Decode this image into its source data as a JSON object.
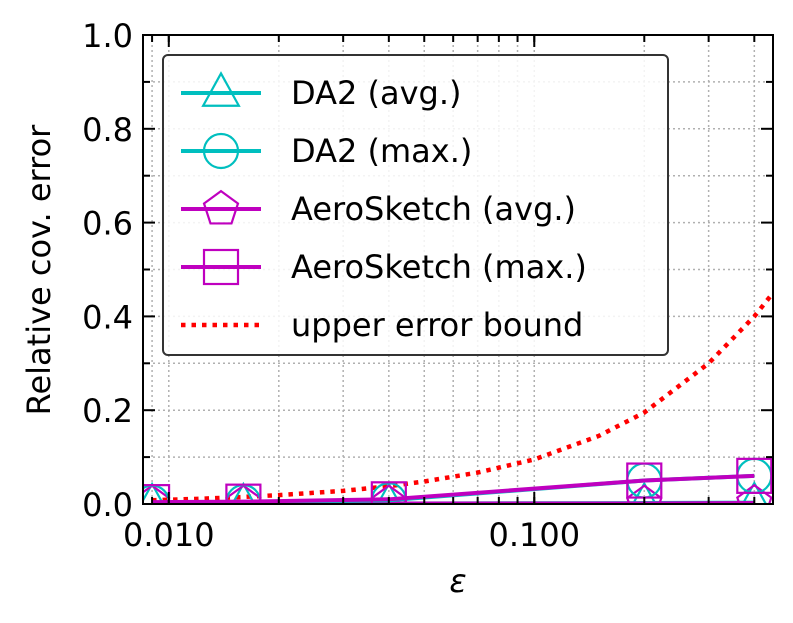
{
  "chart_data": {
    "type": "line",
    "xscale": "log",
    "xlim": [
      0.0085,
      0.45
    ],
    "ylim": [
      0.0,
      1.0
    ],
    "xlabel": "ε",
    "ylabel": "Relative cov. error",
    "xticks": [
      0.01,
      0.1
    ],
    "xtick_labels": [
      "0.010",
      "0.100"
    ],
    "yticks": [
      0.0,
      0.2,
      0.4,
      0.6,
      0.8,
      1.0
    ],
    "ytick_labels": [
      "0.0",
      "0.2",
      "0.4",
      "0.6",
      "0.8",
      "1.0"
    ],
    "grid": true,
    "legend_position": "top-left",
    "series": [
      {
        "name": "DA2 (avg.)",
        "color": "#00bfbf",
        "marker": "triangle",
        "line": "solid",
        "x": [
          0.009,
          0.016,
          0.04,
          0.2,
          0.4
        ],
        "y": [
          0.001,
          0.001,
          0.001,
          0.002,
          0.003
        ]
      },
      {
        "name": "DA2 (max.)",
        "color": "#00bfbf",
        "marker": "circle",
        "line": "solid",
        "x": [
          0.009,
          0.016,
          0.04,
          0.2,
          0.4
        ],
        "y": [
          0.003,
          0.004,
          0.008,
          0.05,
          0.06
        ]
      },
      {
        "name": "AeroSketch (avg.)",
        "color": "#bf00bf",
        "marker": "pentagon",
        "line": "solid",
        "x": [
          0.009,
          0.016,
          0.04,
          0.2,
          0.4
        ],
        "y": [
          0.001,
          0.001,
          0.001,
          0.001,
          0.002
        ]
      },
      {
        "name": "AeroSketch (max.)",
        "color": "#bf00bf",
        "marker": "square",
        "line": "solid",
        "x": [
          0.009,
          0.016,
          0.04,
          0.2,
          0.4
        ],
        "y": [
          0.004,
          0.005,
          0.01,
          0.05,
          0.06
        ]
      },
      {
        "name": "upper error bound",
        "color": "#ff0000",
        "marker": "none",
        "line": "dotted",
        "x": [
          0.009,
          0.012,
          0.016,
          0.02,
          0.03,
          0.04,
          0.05,
          0.07,
          0.1,
          0.15,
          0.2,
          0.3,
          0.4,
          0.45
        ],
        "y": [
          0.008,
          0.011,
          0.015,
          0.019,
          0.028,
          0.038,
          0.048,
          0.067,
          0.095,
          0.145,
          0.195,
          0.3,
          0.4,
          0.45
        ]
      }
    ]
  }
}
